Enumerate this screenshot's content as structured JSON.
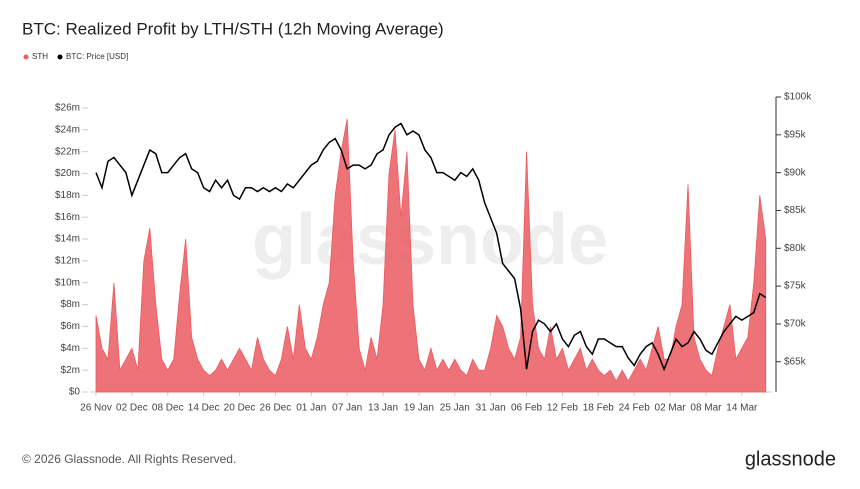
{
  "chart_data": {
    "type": "area-line",
    "title": "BTC: Realized Profit by LTH/STH (12h Moving Average)",
    "footer": "© 2026 Glassnode. All Rights Reserved.",
    "watermark": "glassnode",
    "logo": "glassnode",
    "categories": [
      "26 Nov",
      null,
      null,
      null,
      null,
      null,
      "02 Dec",
      null,
      null,
      null,
      null,
      null,
      "08 Dec",
      null,
      null,
      null,
      null,
      null,
      "14 Dec",
      null,
      null,
      null,
      null,
      null,
      "20 Dec",
      null,
      null,
      null,
      null,
      null,
      "26 Dec",
      null,
      null,
      null,
      null,
      null,
      "01 Jan",
      null,
      null,
      null,
      null,
      null,
      "07 Jan",
      null,
      null,
      null,
      null,
      null,
      "13 Jan",
      null,
      null,
      null,
      null,
      null,
      "19 Jan",
      null,
      null,
      null,
      null,
      null,
      "25 Jan",
      null,
      null,
      null,
      null,
      null,
      "31 Jan",
      null,
      null,
      null,
      null,
      null,
      "06 Feb",
      null,
      null,
      null,
      null,
      null,
      "12 Feb",
      null,
      null,
      null,
      null,
      null,
      "18 Feb",
      null,
      null,
      null,
      null,
      null,
      "24 Feb",
      null,
      null,
      null,
      null,
      null,
      "02 Mar",
      null,
      null,
      null,
      null,
      null,
      "08 Mar",
      null,
      null,
      null,
      null,
      null,
      "14 Mar",
      null,
      null,
      null,
      null
    ],
    "series": [
      {
        "name": "STH",
        "color": "#eb5a60",
        "axis": "y",
        "values": [
          7000000,
          4000000,
          3000000,
          10000000,
          2000000,
          3000000,
          4000000,
          2000000,
          12000000,
          15000000,
          8000000,
          3000000,
          2000000,
          3000000,
          9000000,
          14000000,
          5000000,
          3000000,
          2000000,
          1500000,
          2000000,
          3000000,
          2000000,
          3000000,
          4000000,
          3000000,
          2000000,
          5000000,
          3000000,
          2000000,
          1500000,
          3000000,
          6000000,
          3000000,
          8000000,
          4000000,
          3000000,
          5000000,
          8000000,
          10000000,
          18000000,
          22000000,
          25000000,
          12000000,
          4000000,
          2000000,
          5000000,
          3000000,
          8000000,
          20000000,
          24000000,
          16000000,
          22000000,
          8000000,
          3000000,
          2000000,
          4000000,
          2000000,
          3000000,
          2000000,
          3000000,
          2000000,
          1500000,
          3000000,
          2000000,
          2000000,
          4000000,
          7000000,
          6000000,
          4000000,
          3000000,
          5000000,
          22000000,
          8000000,
          4000000,
          3000000,
          6000000,
          3000000,
          4000000,
          2000000,
          3000000,
          4000000,
          2000000,
          3000000,
          2000000,
          1500000,
          2000000,
          1000000,
          2000000,
          1000000,
          2000000,
          3000000,
          2000000,
          4000000,
          6000000,
          3000000,
          3000000,
          6000000,
          8000000,
          19000000,
          5000000,
          3000000,
          2000000,
          1500000,
          4000000,
          6000000,
          8000000,
          3000000,
          4000000,
          5000000,
          10000000,
          18000000,
          14000000
        ]
      },
      {
        "name": "BTC: Price [USD]",
        "color": "#000000",
        "axis": "y2",
        "values": [
          90000,
          88000,
          91500,
          92000,
          91000,
          90000,
          87000,
          89000,
          91000,
          93000,
          92500,
          90000,
          90000,
          91000,
          92000,
          92500,
          90500,
          90000,
          88000,
          87500,
          89000,
          88000,
          89000,
          87000,
          86500,
          88000,
          88000,
          87500,
          88000,
          87500,
          88000,
          87500,
          88500,
          88000,
          89000,
          90000,
          91000,
          91500,
          93000,
          94000,
          94500,
          93000,
          90500,
          91000,
          91000,
          90500,
          91000,
          92500,
          93000,
          95000,
          96000,
          96500,
          95000,
          95500,
          95000,
          93000,
          92000,
          90000,
          90000,
          89500,
          89000,
          90000,
          89500,
          90500,
          89000,
          86000,
          84000,
          82000,
          78000,
          77000,
          76000,
          72000,
          64000,
          69000,
          70500,
          70000,
          69000,
          70000,
          68000,
          67000,
          68500,
          69000,
          67000,
          66000,
          68000,
          68000,
          67500,
          67000,
          67000,
          65500,
          64500,
          66000,
          67000,
          67500,
          66000,
          64000,
          66000,
          68000,
          67000,
          67500,
          69000,
          68000,
          66500,
          66000,
          67500,
          69000,
          70000,
          71000,
          70500,
          71000,
          71500,
          74000,
          73500
        ]
      }
    ],
    "ylim": [
      0,
      27000000
    ],
    "yticks": [
      {
        "value": 0,
        "label": "$0"
      },
      {
        "value": 2000000,
        "label": "$2m"
      },
      {
        "value": 4000000,
        "label": "$4m"
      },
      {
        "value": 6000000,
        "label": "$6m"
      },
      {
        "value": 8000000,
        "label": "$8m"
      },
      {
        "value": 10000000,
        "label": "$10m"
      },
      {
        "value": 12000000,
        "label": "$12m"
      },
      {
        "value": 14000000,
        "label": "$14m"
      },
      {
        "value": 16000000,
        "label": "$16m"
      },
      {
        "value": 18000000,
        "label": "$18m"
      },
      {
        "value": 20000000,
        "label": "$20m"
      },
      {
        "value": 22000000,
        "label": "$22m"
      },
      {
        "value": 24000000,
        "label": "$24m"
      },
      {
        "value": 26000000,
        "label": "$26m"
      }
    ],
    "y2lim": [
      61000,
      100000
    ],
    "y2ticks": [
      {
        "value": 65000,
        "label": "$65k"
      },
      {
        "value": 70000,
        "label": "$70k"
      },
      {
        "value": 75000,
        "label": "$75k"
      },
      {
        "value": 80000,
        "label": "$80k"
      },
      {
        "value": 85000,
        "label": "$85k"
      },
      {
        "value": 90000,
        "label": "$90k"
      },
      {
        "value": 95000,
        "label": "$95k"
      },
      {
        "value": 100000,
        "label": "$100k"
      }
    ],
    "legend": "top-left"
  }
}
